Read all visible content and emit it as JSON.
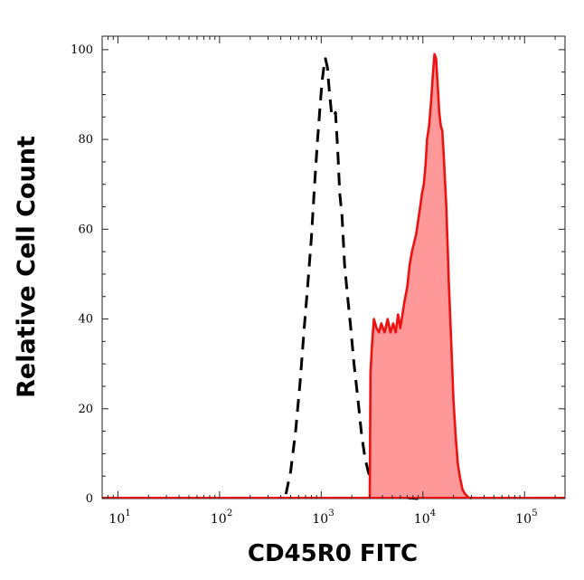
{
  "chart_data": {
    "type": "area",
    "xlabel": "CD45R0 FITC",
    "ylabel": "Relative Cell Count",
    "xscale": "log",
    "xlim": [
      7,
      250000
    ],
    "ylim": [
      0,
      103
    ],
    "grid": false,
    "legend": "none",
    "yticks": [
      0,
      20,
      40,
      60,
      80,
      100
    ],
    "xticks": [
      {
        "value": 10,
        "base": "10",
        "exp": "1"
      },
      {
        "value": 100,
        "base": "10",
        "exp": "2"
      },
      {
        "value": 1000,
        "base": "10",
        "exp": "3"
      },
      {
        "value": 10000,
        "base": "10",
        "exp": "4"
      },
      {
        "value": 100000,
        "base": "10",
        "exp": "5"
      }
    ],
    "series": [
      {
        "style": "dashed-outline",
        "color": "#000000",
        "x": [
          450,
          500,
          560,
          620,
          680,
          740,
          800,
          860,
          920,
          980,
          1020,
          1060,
          1100,
          1150,
          1200,
          1260,
          1320,
          1380,
          1450,
          1520,
          1600,
          1700,
          1800,
          1950,
          2100,
          2300,
          2500,
          2700,
          2900,
          3100,
          3400,
          3800,
          4300,
          5000,
          6000,
          7500,
          9000
        ],
        "y": [
          1,
          6,
          15,
          26,
          38,
          48,
          58,
          70,
          80,
          88,
          93,
          96,
          98,
          96,
          91,
          86,
          85,
          86,
          78,
          68,
          63,
          52,
          46,
          38,
          30,
          22,
          14,
          9,
          6,
          4,
          2.5,
          1.5,
          1,
          0.5,
          0.3,
          0.1,
          0
        ]
      },
      {
        "style": "filled",
        "color": "#ee1111",
        "fill": "#ff9999",
        "x": [
          3000,
          3050,
          3150,
          3300,
          3500,
          3700,
          3900,
          4200,
          4500,
          4800,
          5100,
          5400,
          5700,
          6000,
          6300,
          6600,
          7000,
          7400,
          7800,
          8200,
          8600,
          9000,
          9400,
          9800,
          10200,
          10600,
          11000,
          11500,
          12000,
          12500,
          13000,
          13500,
          14000,
          14500,
          15000,
          15500,
          16000,
          17000,
          18000,
          19000,
          20000,
          21000,
          22000,
          23000,
          24500,
          26000,
          28000,
          30000
        ],
        "y": [
          0,
          28,
          34,
          40,
          38,
          37,
          39,
          37,
          40,
          37,
          39,
          37,
          41,
          38,
          41,
          44,
          47,
          52,
          55,
          57,
          59,
          62,
          65,
          68,
          70,
          74,
          80,
          83,
          88,
          94,
          99,
          98,
          92,
          86,
          83,
          82,
          77,
          65,
          48,
          35,
          22,
          14,
          8,
          5,
          2,
          1,
          0.3,
          0
        ]
      }
    ]
  }
}
